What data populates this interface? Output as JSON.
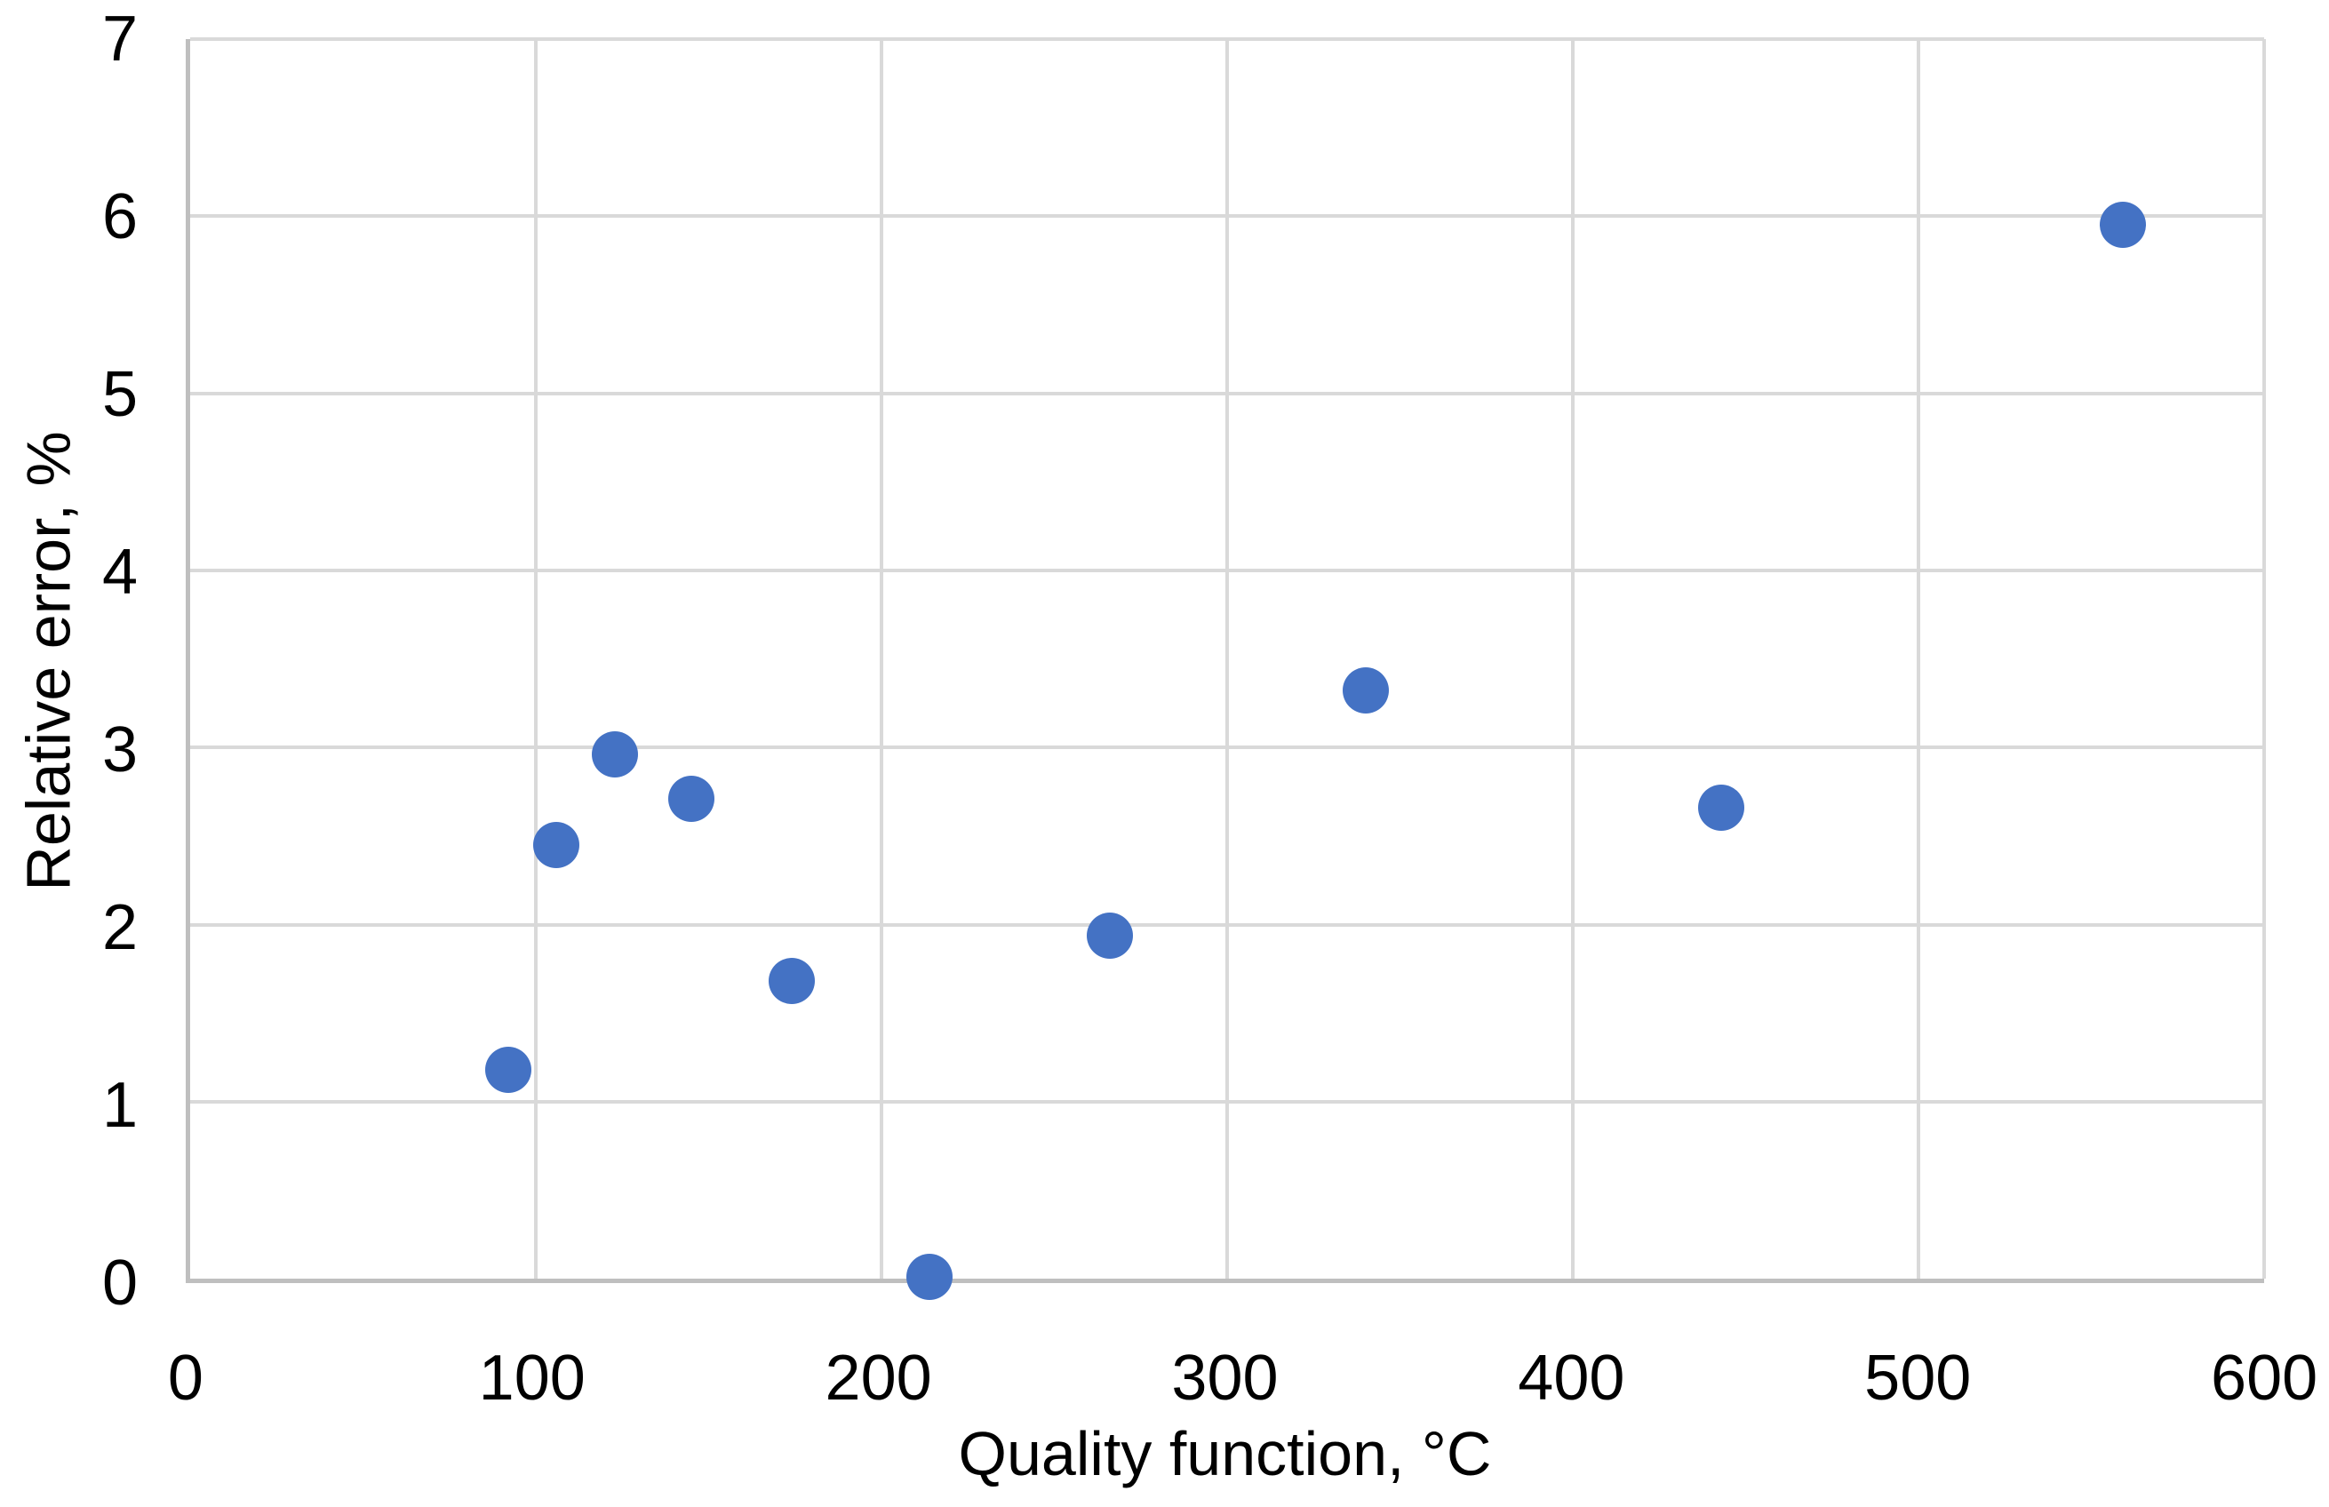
{
  "chart_data": {
    "type": "scatter",
    "title": "",
    "xlabel": "Quality function, °C",
    "ylabel": "Relative error, %",
    "xlim": [
      0,
      600
    ],
    "ylim": [
      0,
      7
    ],
    "x_ticks": [
      0,
      100,
      200,
      300,
      400,
      500,
      600
    ],
    "y_ticks": [
      0,
      1,
      2,
      3,
      4,
      5,
      6,
      7
    ],
    "grid": true,
    "legend": false,
    "series": [
      {
        "marker_color": "#4472C4",
        "points": [
          {
            "x": 92,
            "y": 1.18
          },
          {
            "x": 106,
            "y": 2.45
          },
          {
            "x": 123,
            "y": 2.96
          },
          {
            "x": 145,
            "y": 2.71
          },
          {
            "x": 174,
            "y": 1.68
          },
          {
            "x": 214,
            "y": 0.01
          },
          {
            "x": 266,
            "y": 1.94
          },
          {
            "x": 340,
            "y": 3.32
          },
          {
            "x": 443,
            "y": 2.66
          },
          {
            "x": 559,
            "y": 5.95
          }
        ]
      }
    ]
  },
  "colors": {
    "marker": "#4472C4",
    "gridline": "#D9D9D9",
    "axis_line": "#BFBFBF",
    "text": "#000000",
    "background": "#FFFFFF"
  }
}
